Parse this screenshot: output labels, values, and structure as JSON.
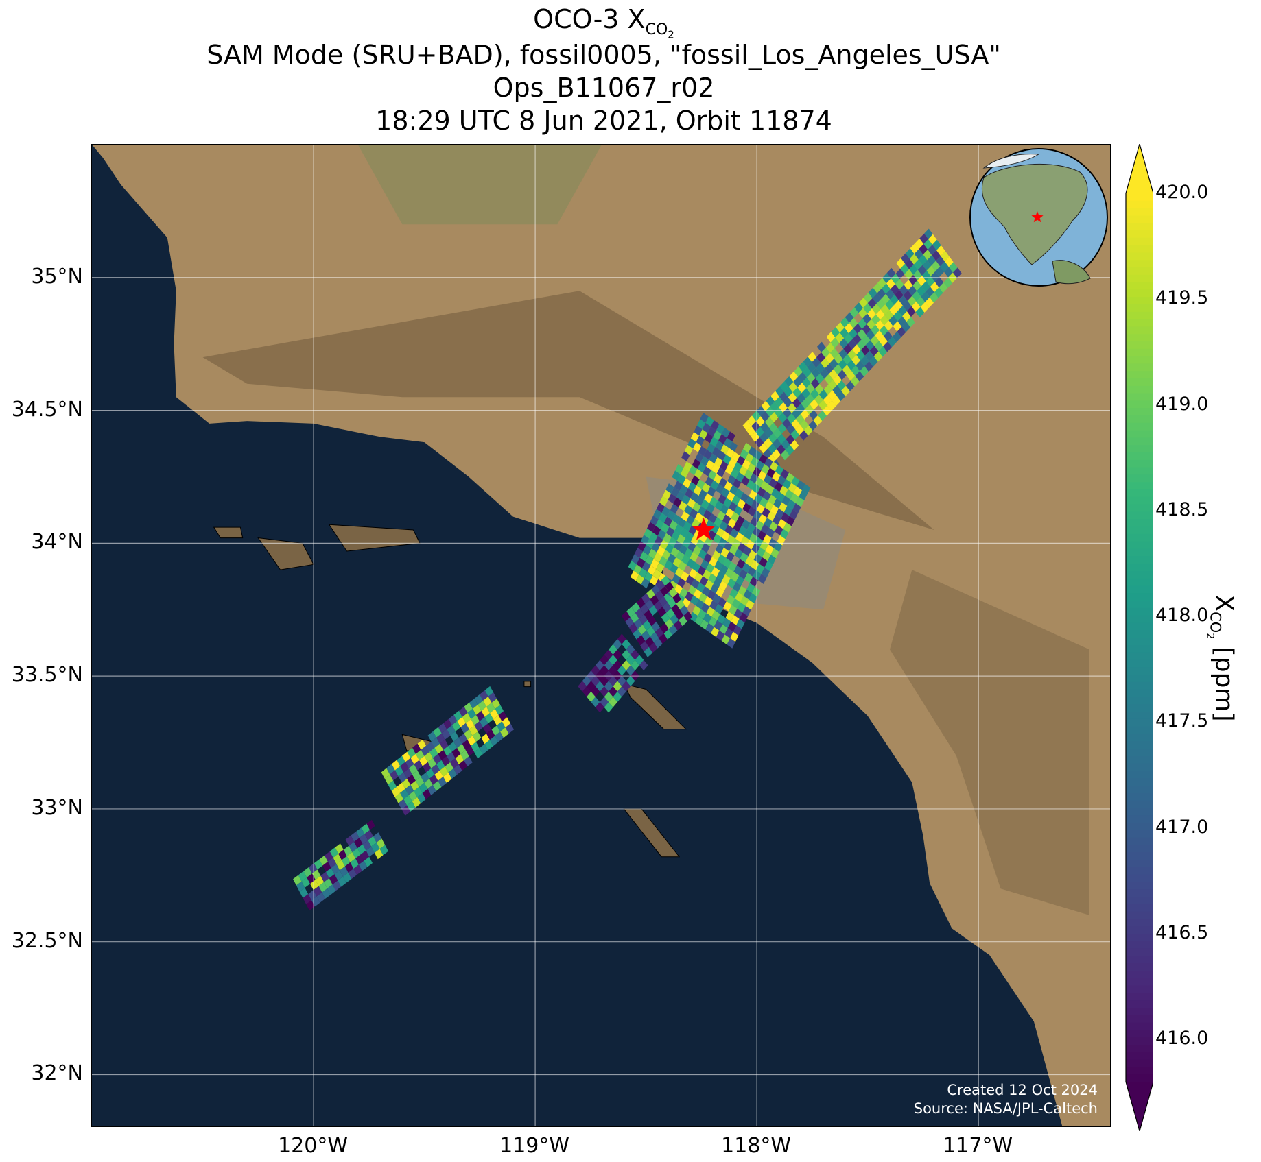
{
  "title": {
    "line1_prefix": "OCO-3 X",
    "line1_sub": "CO",
    "line1_sub2": "2",
    "line2": "SAM Mode (SRU+BAD), fossil0005, \"fossil_Los_Angeles_USA\"",
    "line3": "Ops_B11067_r02",
    "line4": "18:29 UTC 8 Jun 2021, Orbit 11874"
  },
  "map": {
    "lon_range": [
      -121.0,
      -116.4
    ],
    "lat_range": [
      31.8,
      35.5
    ],
    "lat_ticks": [
      {
        "value": 35.0,
        "label": "35°N"
      },
      {
        "value": 34.5,
        "label": "34.5°N"
      },
      {
        "value": 34.0,
        "label": "34°N"
      },
      {
        "value": 33.5,
        "label": "33.5°N"
      },
      {
        "value": 33.0,
        "label": "33°N"
      },
      {
        "value": 32.5,
        "label": "32.5°N"
      },
      {
        "value": 32.0,
        "label": "32°N"
      }
    ],
    "lon_ticks": [
      {
        "value": -120.0,
        "label": "120°W"
      },
      {
        "value": -119.0,
        "label": "119°W"
      },
      {
        "value": -118.0,
        "label": "118°W"
      },
      {
        "value": -117.0,
        "label": "117°W"
      }
    ],
    "target": {
      "lon": -118.24,
      "lat": 34.05,
      "marker": "red-star",
      "color": "#ff0000"
    },
    "ocean_color": "#10233a",
    "land_color": "#a88a60",
    "gridlines": true,
    "inset_globe": {
      "position": "top-right",
      "ocean_color": "#7fb3d8",
      "marker": "red-star"
    },
    "credits": {
      "line1": "Created 12 Oct 2024",
      "line2": "Source: NASA/JPL-Caltech"
    }
  },
  "colorbar": {
    "colormap": "viridis",
    "min": 415.8,
    "max": 420.0,
    "extend": "both",
    "ticks": [
      {
        "value": 420.0,
        "label": "420.0"
      },
      {
        "value": 419.5,
        "label": "419.5"
      },
      {
        "value": 419.0,
        "label": "419.0"
      },
      {
        "value": 418.5,
        "label": "418.5"
      },
      {
        "value": 418.0,
        "label": "418.0"
      },
      {
        "value": 417.5,
        "label": "417.5"
      },
      {
        "value": 417.0,
        "label": "417.0"
      },
      {
        "value": 416.5,
        "label": "416.5"
      },
      {
        "value": 416.0,
        "label": "416.0"
      }
    ],
    "label_prefix": "X",
    "label_sub": "CO",
    "label_sub2": "2",
    "label_suffix": " [ppm]"
  },
  "swaths": [
    {
      "name": "northeast-strip",
      "from": [
        -117.15,
        35.1
      ],
      "to": [
        -118.0,
        34.35
      ],
      "width": 0.22,
      "mean": 418.4
    },
    {
      "name": "los-angeles-basin",
      "from": [
        -118.0,
        34.35
      ],
      "to": [
        -118.35,
        33.75
      ],
      "width": 0.55,
      "mean": 418.2
    },
    {
      "name": "coastal-fringe",
      "from": [
        -118.35,
        33.8
      ],
      "to": [
        -118.55,
        33.65
      ],
      "width": 0.2,
      "mean": 417.0
    },
    {
      "name": "catalina-patch",
      "from": [
        -118.55,
        33.6
      ],
      "to": [
        -118.75,
        33.4
      ],
      "width": 0.18,
      "mean": 417.2
    },
    {
      "name": "santa-barbara-channel-patch",
      "from": [
        -119.15,
        33.38
      ],
      "to": [
        -119.65,
        33.05
      ],
      "width": 0.2,
      "mean": 418.0
    },
    {
      "name": "offshore-south-patch",
      "from": [
        -119.7,
        32.9
      ],
      "to": [
        -120.05,
        32.68
      ],
      "width": 0.14,
      "mean": 417.5
    }
  ]
}
